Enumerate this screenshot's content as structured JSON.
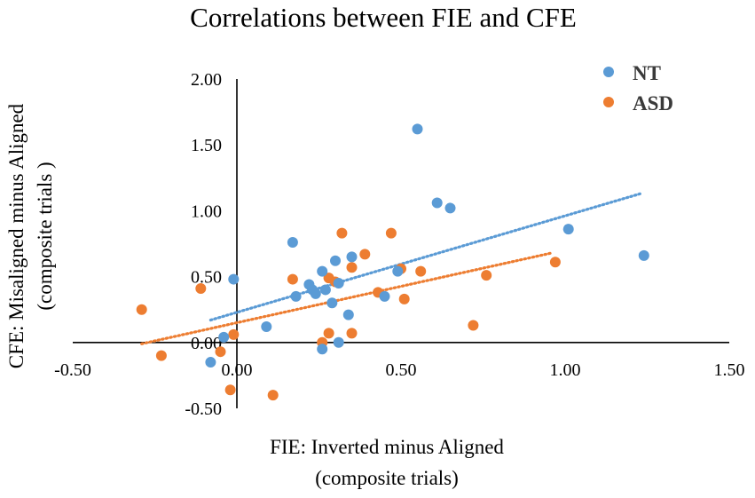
{
  "chart_data": {
    "type": "scatter",
    "title": "Correlations between FIE and CFE",
    "xlabel_line1": "FIE: Inverted minus Aligned",
    "xlabel_line2": "(composite trials)",
    "ylabel_line1": "CFE: Misaligned minus Aligned",
    "ylabel_line2": "(composite trials )",
    "xlim": [
      -0.5,
      1.5
    ],
    "ylim": [
      -0.5,
      2.0
    ],
    "x_ticks": [
      "-0.50",
      "0.00",
      "0.50",
      "1.00",
      "1.50"
    ],
    "x_tick_values": [
      -0.5,
      0.0,
      0.5,
      1.0,
      1.5
    ],
    "y_ticks": [
      "-0.50",
      "0.00",
      "0.50",
      "1.00",
      "1.50",
      "2.00"
    ],
    "y_tick_values": [
      -0.5,
      0.0,
      0.5,
      1.0,
      1.5,
      2.0
    ],
    "legend_position": "top-right",
    "series": [
      {
        "name": "NT",
        "color": "#5b9bd5",
        "points": [
          [
            -0.08,
            -0.15
          ],
          [
            -0.04,
            0.04
          ],
          [
            -0.01,
            0.48
          ],
          [
            0.09,
            0.12
          ],
          [
            0.17,
            0.76
          ],
          [
            0.18,
            0.35
          ],
          [
            0.22,
            0.44
          ],
          [
            0.23,
            0.4
          ],
          [
            0.24,
            0.37
          ],
          [
            0.26,
            0.54
          ],
          [
            0.26,
            -0.05
          ],
          [
            0.27,
            0.4
          ],
          [
            0.29,
            0.3
          ],
          [
            0.3,
            0.62
          ],
          [
            0.31,
            0.45
          ],
          [
            0.31,
            0.0
          ],
          [
            0.34,
            0.21
          ],
          [
            0.35,
            0.65
          ],
          [
            0.45,
            0.35
          ],
          [
            0.49,
            0.54
          ],
          [
            0.55,
            1.62
          ],
          [
            0.61,
            1.06
          ],
          [
            0.65,
            1.02
          ],
          [
            1.01,
            0.86
          ],
          [
            1.24,
            0.66
          ]
        ],
        "trend": [
          [
            -0.08,
            0.17
          ],
          [
            1.23,
            1.13
          ]
        ]
      },
      {
        "name": "ASD",
        "color": "#ed7d31",
        "points": [
          [
            -0.29,
            0.25
          ],
          [
            -0.23,
            -0.1
          ],
          [
            -0.11,
            0.41
          ],
          [
            -0.05,
            -0.07
          ],
          [
            -0.02,
            -0.36
          ],
          [
            -0.01,
            0.06
          ],
          [
            0.11,
            -0.4
          ],
          [
            0.17,
            0.48
          ],
          [
            0.26,
            0.0
          ],
          [
            0.28,
            0.07
          ],
          [
            0.28,
            0.49
          ],
          [
            0.3,
            0.46
          ],
          [
            0.32,
            0.83
          ],
          [
            0.35,
            0.07
          ],
          [
            0.35,
            0.57
          ],
          [
            0.39,
            0.67
          ],
          [
            0.43,
            0.38
          ],
          [
            0.47,
            0.83
          ],
          [
            0.5,
            0.56
          ],
          [
            0.51,
            0.33
          ],
          [
            0.56,
            0.54
          ],
          [
            0.72,
            0.13
          ],
          [
            0.76,
            0.51
          ],
          [
            0.97,
            0.61
          ]
        ],
        "trend": [
          [
            -0.29,
            -0.01
          ],
          [
            0.96,
            0.68
          ]
        ]
      }
    ]
  }
}
